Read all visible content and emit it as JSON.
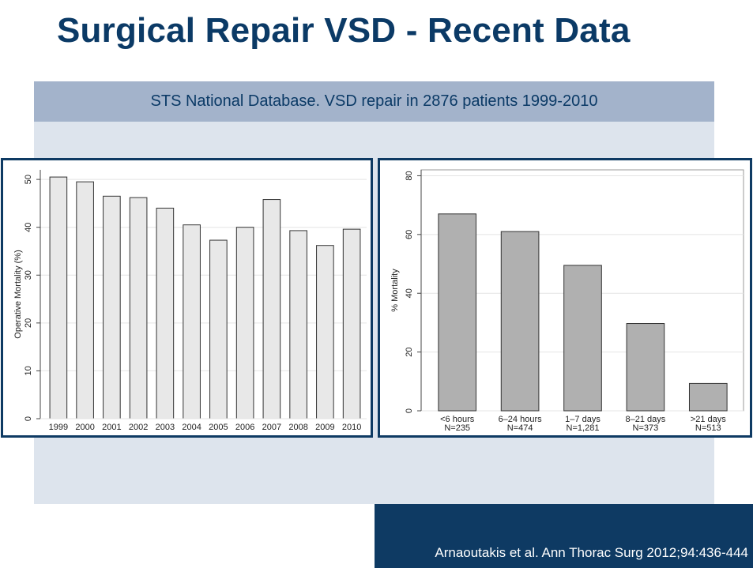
{
  "slide": {
    "title": "Surgical Repair VSD - Recent Data",
    "subtitle": "STS National Database. VSD repair in 2876 patients 1999-2010",
    "citation": "Arnaoutakis et al. Ann Thorac Surg 2012;94:436-444"
  },
  "colors": {
    "title": "#0b3a66",
    "header_band": "#a3b3cb",
    "panel": "#dde4ed",
    "frame": "#0e3a63",
    "bar_left": "#e8e8e8",
    "bar_right": "#b0b0b0"
  },
  "chart_data": [
    {
      "type": "bar",
      "title": "",
      "xlabel": "",
      "ylabel": "Operative Mortality (%)",
      "categories": [
        "1999",
        "2000",
        "2001",
        "2002",
        "2003",
        "2004",
        "2005",
        "2006",
        "2007",
        "2008",
        "2009",
        "2010"
      ],
      "values": [
        50.5,
        49.5,
        46.5,
        46.2,
        44,
        40.5,
        37.3,
        40,
        45.8,
        39.3,
        36.2,
        39.6
      ],
      "ylim": [
        0,
        52
      ],
      "yticks": [
        "0",
        "10",
        "20",
        "30",
        "40",
        "50"
      ],
      "grid": true
    },
    {
      "type": "bar",
      "title": "",
      "xlabel": "",
      "ylabel": "% Mortality",
      "categories": [
        "<6 hours",
        "6–24 hours",
        "1–7 days",
        "8–21 days",
        ">21 days"
      ],
      "n_labels": [
        "N=235",
        "N=474",
        "N=1,281",
        "N=373",
        "N=513"
      ],
      "values": [
        67,
        61,
        49.5,
        29.7,
        9.3
      ],
      "ylim": [
        0,
        82
      ],
      "yticks": [
        "0",
        "20",
        "40",
        "60",
        "80"
      ],
      "grid": true
    }
  ]
}
